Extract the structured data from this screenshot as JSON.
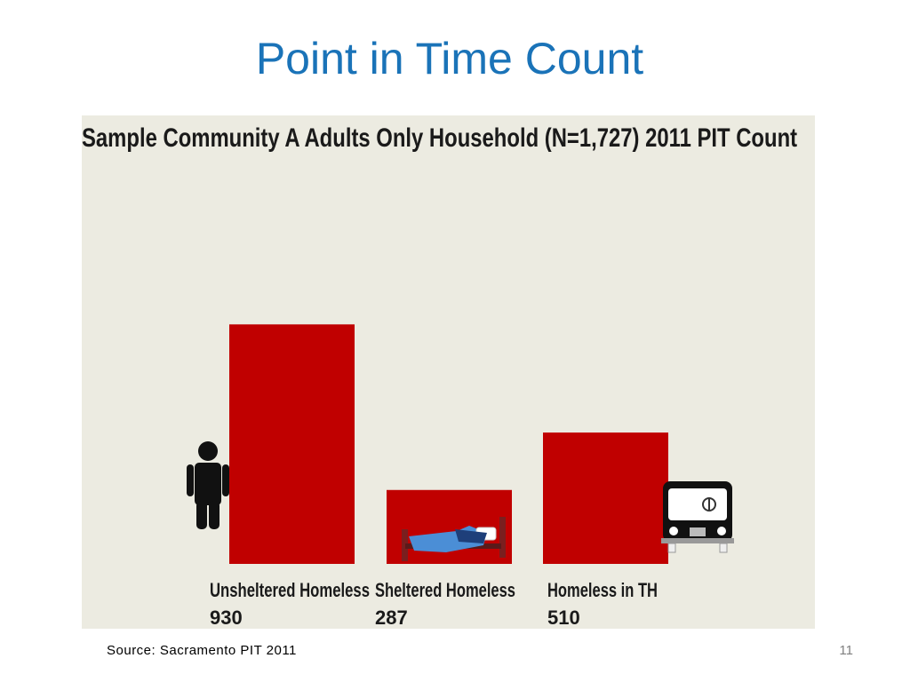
{
  "slide": {
    "title": "Point in Time Count",
    "source": "Source: Sacramento PIT 2011",
    "page_number": "11"
  },
  "colors": {
    "title": "#1a73b8",
    "bar": "#c00000",
    "panel_background": "#ecebe1"
  },
  "chart_data": {
    "type": "bar",
    "title": "Sample Community A Adults Only Household (N=1,727) 2011 PIT Count",
    "categories": [
      "Unsheltered Homeless",
      "Sheltered Homeless",
      "Homeless in TH"
    ],
    "values": [
      930,
      287,
      510
    ],
    "value_labels": [
      "930",
      "287",
      "510"
    ],
    "xlabel": "",
    "ylabel": "",
    "ylim": [
      0,
      1000
    ],
    "grid": false,
    "legend": "none",
    "icons": [
      "person-icon",
      "bed-icon",
      "bus-icon"
    ]
  }
}
